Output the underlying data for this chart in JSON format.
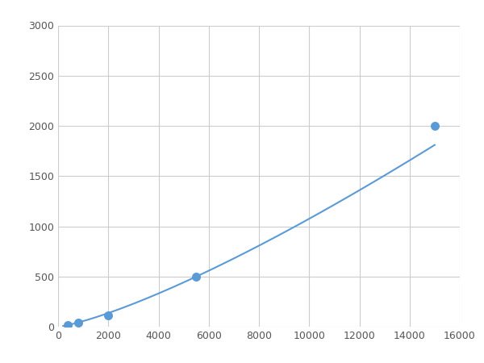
{
  "x": [
    400,
    800,
    2000,
    5500,
    15000
  ],
  "y": [
    20,
    40,
    110,
    500,
    2000
  ],
  "line_color": "#5B9BD5",
  "marker_color": "#5B9BD5",
  "marker_size": 48,
  "line_width": 1.5,
  "xlim": [
    0,
    16000
  ],
  "ylim": [
    0,
    3000
  ],
  "xticks": [
    0,
    2000,
    4000,
    6000,
    8000,
    10000,
    12000,
    14000,
    16000
  ],
  "yticks": [
    0,
    500,
    1000,
    1500,
    2000,
    2500,
    3000
  ],
  "grid_color": "#CCCCCC",
  "background_color": "#FFFFFF",
  "figsize": [
    6.0,
    4.5
  ],
  "dpi": 100
}
